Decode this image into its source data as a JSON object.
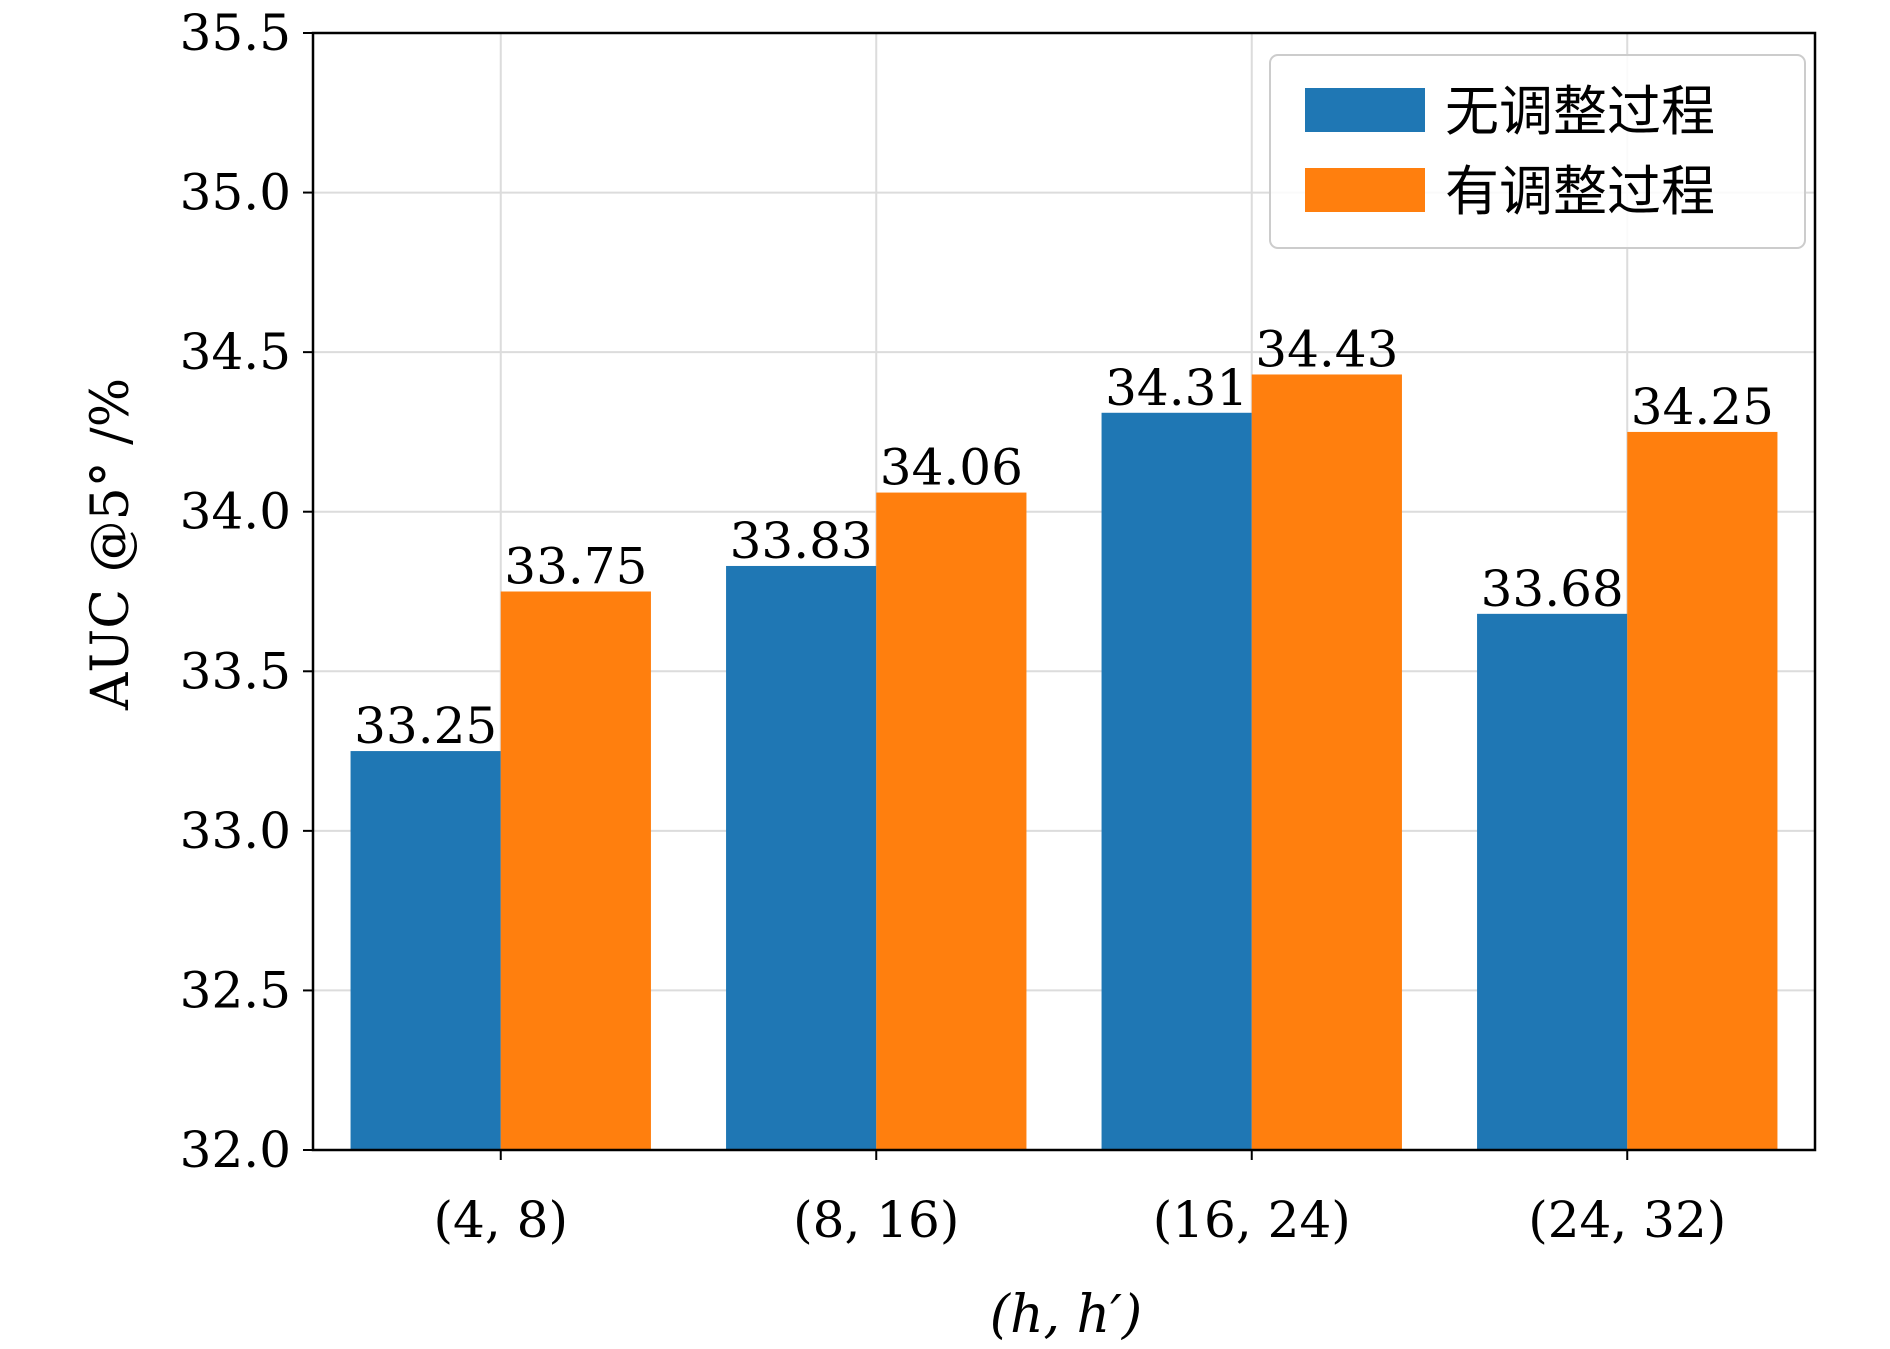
{
  "chart_data": {
    "type": "bar",
    "title": "",
    "xlabel": "(h, h′)",
    "ylabel": "AUC @5° /%",
    "categories": [
      "(4, 8)",
      "(8, 16)",
      "(16, 24)",
      "(24, 32)"
    ],
    "series": [
      {
        "name": "无调整过程",
        "color": "#1f77b4",
        "values": [
          33.25,
          33.83,
          34.31,
          33.68
        ]
      },
      {
        "name": "有调整过程",
        "color": "#ff7f0e",
        "values": [
          33.75,
          34.06,
          34.43,
          34.25
        ]
      }
    ],
    "ylim": [
      32.0,
      35.5
    ],
    "yticks": [
      "32.0",
      "32.5",
      "33.0",
      "33.5",
      "34.0",
      "34.5",
      "35.0",
      "35.5"
    ],
    "grid": true,
    "legend_position": "top-right",
    "data_labels": [
      [
        "33.25",
        "33.83",
        "34.31",
        "33.68"
      ],
      [
        "33.75",
        "34.06",
        "34.43",
        "34.25"
      ]
    ]
  }
}
